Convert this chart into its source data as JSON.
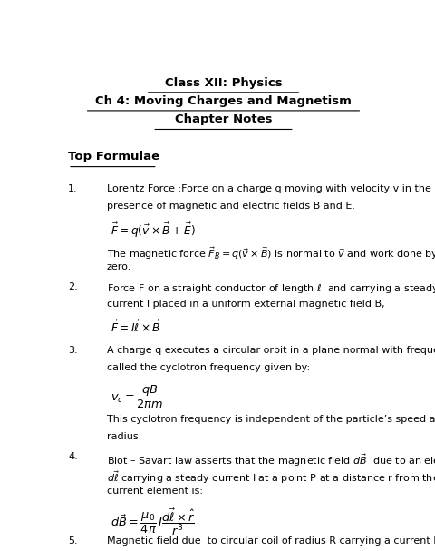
{
  "title1": "Class XII: Physics",
  "title2": "Ch 4: Moving Charges and Magnetism",
  "title3": "Chapter Notes",
  "section": "Top Formulae",
  "bg_color": "#ffffff",
  "text_color": "#000000",
  "figsize": [
    4.81,
    6.07
  ],
  "dpi": 100
}
